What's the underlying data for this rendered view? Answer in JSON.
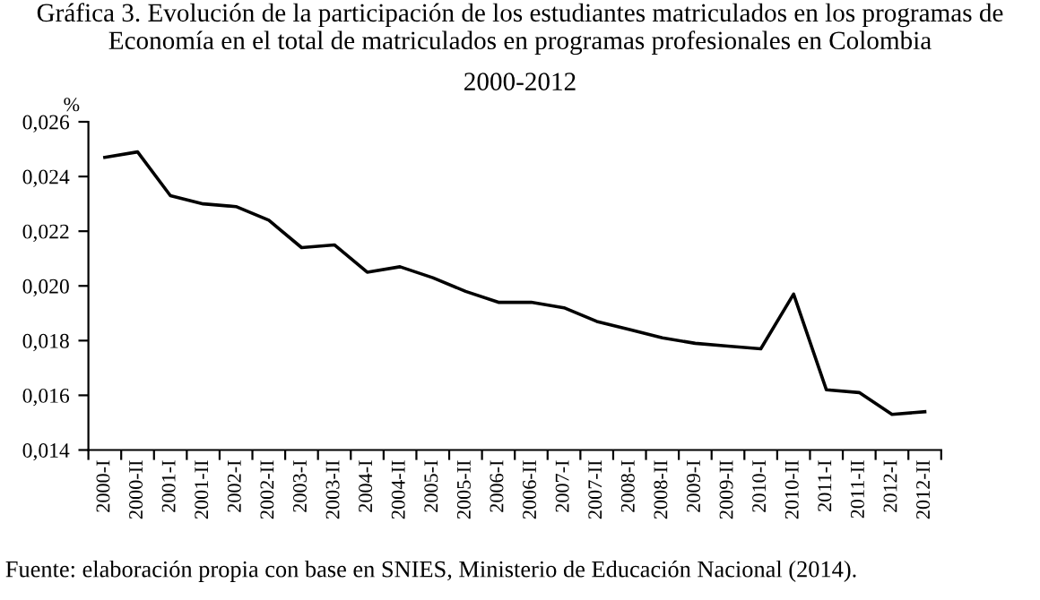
{
  "chart_data": {
    "type": "line",
    "title": "Gráfica 3. Evolución de la participación de los estudiantes matriculados en los programas de Economía en el total de matriculados en programas profesionales en Colombia",
    "subtitle": "2000-2012",
    "ylabel": "%",
    "categories": [
      "2000-I",
      "2000-II",
      "2001-I",
      "2001-II",
      "2002-I",
      "2002-II",
      "2003-I",
      "2003-II",
      "2004-I",
      "2004-II",
      "2005-I",
      "2005-II",
      "2006-I",
      "2006-II",
      "2007-I",
      "2007-II",
      "2008-I",
      "2008-II",
      "2009-I",
      "2009-II",
      "2010-I",
      "2010-II",
      "2011-I",
      "2011-II",
      "2012-I",
      "2012-II"
    ],
    "series": [
      {
        "color": "#000000",
        "values": [
          0.0247,
          0.0249,
          0.0233,
          0.023,
          0.0229,
          0.0224,
          0.0214,
          0.0215,
          0.0205,
          0.0207,
          0.0203,
          0.0198,
          0.0194,
          0.0194,
          0.0192,
          0.0187,
          0.0184,
          0.0181,
          0.0179,
          0.0178,
          0.0177,
          0.0197,
          0.0162,
          0.0161,
          0.0153,
          0.0154
        ]
      }
    ],
    "ylim": [
      0.014,
      0.026
    ],
    "yticks": [
      {
        "value": 0.014,
        "label": "0,014"
      },
      {
        "value": 0.016,
        "label": "0,016"
      },
      {
        "value": 0.018,
        "label": "0,018"
      },
      {
        "value": 0.02,
        "label": "0,020"
      },
      {
        "value": 0.022,
        "label": "0,022"
      },
      {
        "value": 0.024,
        "label": "0,024"
      },
      {
        "value": 0.026,
        "label": "0,026"
      }
    ],
    "marker": "none",
    "line_style": "solid",
    "annotations": [
      "Fuente: elaboración propia con base en SNIES, Ministerio de Educación Nacional (2014)."
    ]
  }
}
